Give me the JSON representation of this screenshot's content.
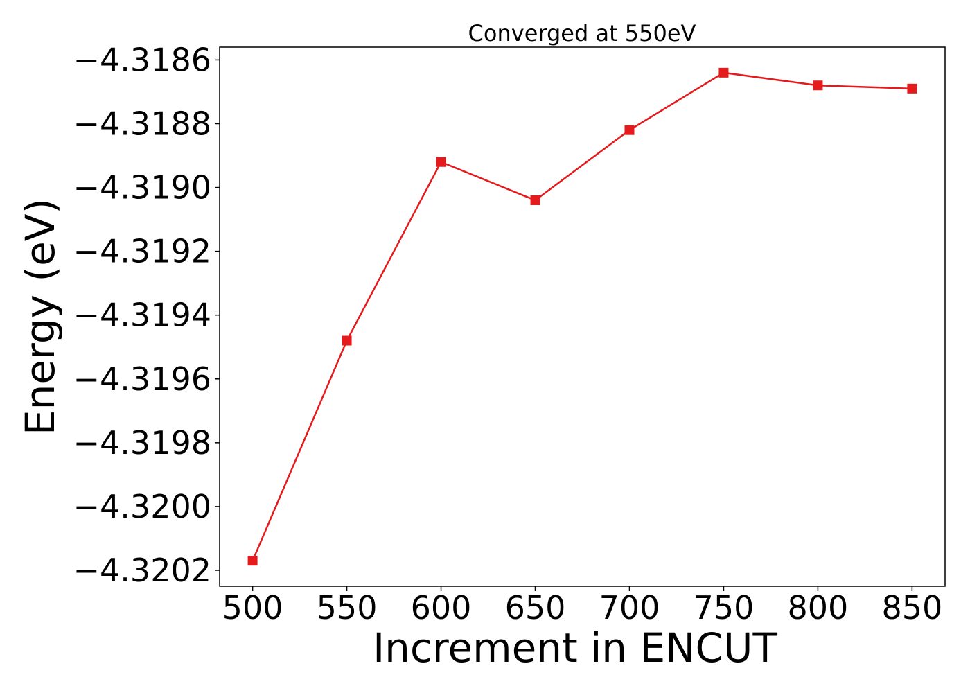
{
  "chart_data": {
    "type": "line",
    "title": "Converged at 550eV",
    "xlabel": "Increment in ENCUT",
    "ylabel": "Energy (eV)",
    "x": [
      500,
      550,
      600,
      650,
      700,
      750,
      800,
      850
    ],
    "series": [
      {
        "name": "",
        "values": [
          -4.32017,
          -4.31948,
          -4.31892,
          -4.31904,
          -4.31882,
          -4.31864,
          -4.31868,
          -4.31869
        ],
        "color": "#e41a1c",
        "marker": "square"
      }
    ],
    "xlim": [
      482.5,
      867.5
    ],
    "ylim": [
      -4.32025,
      -4.31856
    ],
    "x_ticks": [
      500,
      550,
      600,
      650,
      700,
      750,
      800,
      850
    ],
    "y_ticks": [
      -4.3186,
      -4.3188,
      -4.319,
      -4.3192,
      -4.3194,
      -4.3196,
      -4.3198,
      -4.32,
      -4.3202
    ],
    "x_tick_labels": [
      "500",
      "550",
      "600",
      "650",
      "700",
      "750",
      "800",
      "850"
    ],
    "y_tick_labels": [
      "−4.3186",
      "−4.3188",
      "−4.3190",
      "−4.3192",
      "−4.3194",
      "−4.3196",
      "−4.3198",
      "−4.3200",
      "−4.3202"
    ],
    "grid": false,
    "legend": "none"
  }
}
